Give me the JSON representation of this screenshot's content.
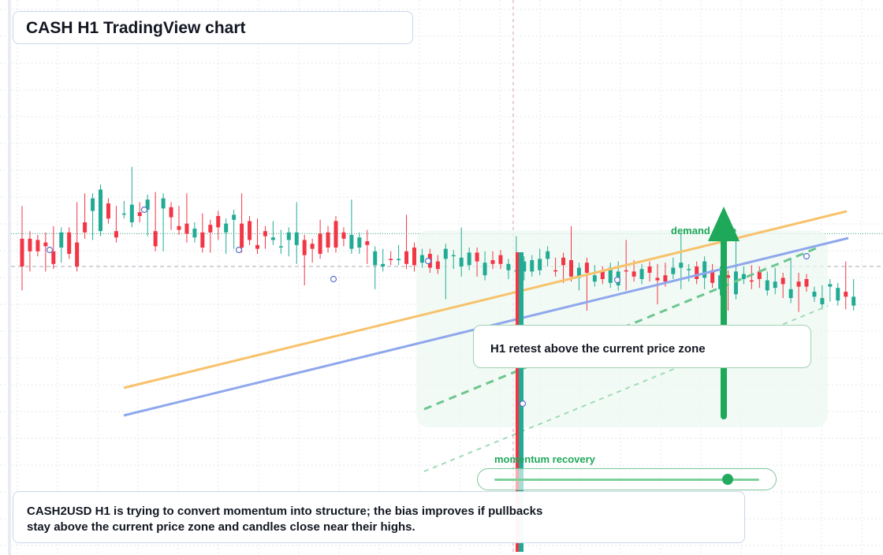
{
  "title": "CASH H1 TradingView chart",
  "callout": "H1 retest above the current price zone",
  "footer_line1": "CASH2USD H1 is trying to convert momentum into structure; the bias improves if pullbacks",
  "footer_line2": "stay above the current price zone and candles close near their highs.",
  "labels": {
    "demand_zone": "demand zone",
    "momentum": "momentum recovery"
  },
  "slider": {
    "value": 0.88
  },
  "colors": {
    "bull": "#22ab94",
    "bear": "#f23645",
    "trend_orange": "#f7c26b",
    "trend_blue": "#8fa8ec",
    "accent_green": "#1ea85a",
    "grid": "#e3e7ee"
  },
  "chart_data": {
    "type": "candlestick",
    "timeframe": "H1",
    "symbol": "CASH2USD",
    "price_levels": {
      "current_price_zone": 1.0,
      "dotted_resistance": 1.026
    },
    "candles": [
      [
        1.022,
        1.024,
        1.021,
        1.0
      ],
      [
        1.022,
        1.024,
        1.0,
        1.012
      ],
      [
        1.021,
        1.02,
        1.014,
        1.012
      ],
      [
        1.019,
        1.023,
        1.0,
        1.016
      ],
      [
        1.012,
        1.028,
        1.005,
        1.002
      ],
      [
        1.015,
        1.027,
        1.007,
        1.027
      ],
      [
        1.027,
        1.018,
        1.027,
        1.01
      ],
      [
        1.019,
        1.027,
        1.024,
        1.0
      ],
      [
        1.035,
        1.026,
        1.054,
        1.027
      ],
      [
        1.044,
        1.049,
        1.04,
        1.054
      ],
      [
        1.028,
        1.049,
        1.031,
        1.061
      ],
      [
        1.05,
        1.046,
        1.039,
        1.038
      ],
      [
        1.028,
        1.038,
        1.044,
        1.023
      ],
      [
        1.042,
        1.048,
        1.042,
        1.042
      ],
      [
        1.035,
        1.055,
        1.037,
        1.049
      ],
      [
        1.043,
        1.039,
        1.047,
        1.04
      ],
      [
        1.045,
        1.042,
        1.028,
        1.053
      ],
      [
        1.028,
        1.043,
        1.055,
        1.016
      ],
      [
        1.046,
        1.037,
        1.031,
        1.054
      ],
      [
        1.047,
        1.033,
        1.043,
        1.039
      ],
      [
        1.032,
        1.04,
        1.044,
        1.029
      ],
      [
        1.034,
        1.026,
        1.023,
        1.026
      ],
      [
        1.023,
        1.024,
        1.031,
        1.03
      ],
      [
        1.027,
        1.033,
        1.038,
        1.015
      ],
      [
        1.033,
        1.024,
        1.015,
        1.027
      ],
      [
        1.04,
        1.025,
        1.025,
        1.031
      ],
      [
        1.027,
        1.024,
        1.014,
        1.034
      ],
      [
        1.037,
        1.034,
        1.033,
        1.041
      ],
      [
        1.034,
        1.032,
        1.024,
        1.015
      ],
      [
        1.036,
        1.025,
        1.03,
        1.021
      ],
      [
        1.017,
        1.034,
        1.022,
        1.014
      ],
      [
        1.028,
        1.022,
        1.018,
        1.024
      ],
      [
        1.021,
        1.032,
        1.024,
        1.023
      ],
      [
        1.016,
        1.014,
        1.025,
        1.016
      ],
      [
        1.021,
        1.023,
        1.012,
        1.027
      ],
      [
        1.017,
        1.006,
        1.015,
        1.027
      ],
      [
        1.021,
        1.004,
        1.012,
        1.009
      ],
      [
        1.018,
        1.007,
        1.018,
        1.014
      ],
      [
        1.026,
        1.031,
        1.033,
        1.01
      ],
      [
        1.027,
        1.027,
        1.028,
        1.015
      ],
      [
        1.036,
        1.028,
        1.031,
        1.015
      ],
      [
        1.027,
        1.02,
        1.023,
        1.022
      ],
      [
        1.014,
        1.028,
        1.029,
        1.025
      ],
      [
        1.015,
        1.014,
        1.019,
        1.023
      ],
      [
        1.02,
        1.006,
        1.025,
        1.017
      ],
      [
        1.001,
        1.01,
        1.003,
        1.012
      ],
      [
        1.0,
        1.01,
        1.006,
        1.002
      ],
      [
        1.006,
        1.006,
        1.008,
        1.005
      ],
      [
        1.005,
        1.013,
        1.01,
        1.006
      ],
      [
        1.012,
        1.017,
        1.003,
        1.002
      ],
      [
        1.015,
        1.003,
        1.0,
        1.001
      ],
      [
        1.003,
        1.01,
        1.008,
        1.009
      ],
      [
        1.01,
        1.008,
        1.004,
        0.999
      ],
      [
        1.004,
        1.005,
        1.001,
        0.998
      ],
      [
        1.006,
        0.995,
        0.993,
        1.014
      ],
      [
        1.009,
        1.006,
        1.002,
        1.009
      ],
      [
        1.0,
        1.003,
        0.996,
        1.007
      ],
      [
        1.001,
        1.011,
        1.002,
        1.011
      ],
      [
        1.011,
        0.996,
        0.999,
        1.004
      ],
      [
        0.993,
        1.004,
        1.008,
        1.003
      ],
      [
        1.005,
        1.003,
        1.008,
        1.002
      ],
      [
        1.009,
        1.009,
        1.006,
        1.002
      ],
      [
        0.997,
        0.994,
        1.001,
        1.002
      ],
      [
        0.997,
        0.995,
        1.0,
        0.997
      ],
      [
        0.996,
        0.993,
        0.994,
        1.004
      ],
      [
        0.996,
        1.002,
        1.0,
        1.005
      ],
      [
        0.997,
        1.01,
        1.005,
        1.006
      ],
      [
        1.006,
        1.006,
        1.004,
        1.012
      ],
      [
        0.997,
        1.003,
        1.0,
        0.996
      ],
      [
        1.007,
        0.995,
        0.991,
        1.001
      ],
      [
        1.005,
        0.992,
        1.008,
        0.992
      ],
      [
        0.991,
        0.993,
        0.985,
        0.999
      ],
      [
        1.003,
        0.992,
        0.984,
        0.995
      ],
      [
        0.988,
        0.992,
        0.997,
        0.993
      ],
      [
        0.996,
        0.99,
        0.993,
        0.99
      ],
      [
        0.987,
        0.996,
        0.993,
        0.999
      ],
      [
        0.985,
        0.989,
        1.0,
        0.996
      ],
      [
        0.997,
        0.985,
        0.992,
        0.996
      ],
      [
        0.996,
        0.997,
        1.001,
        0.992
      ],
      [
        0.99,
        0.998,
        0.995,
        0.998
      ],
      [
        1.0,
        0.992,
        0.999,
        0.995
      ],
      [
        0.991,
        0.998,
        0.993,
        0.989
      ],
      [
        0.993,
        0.999,
        0.994,
        0.988
      ],
      [
        0.994,
        1.003,
        0.999,
        0.999
      ],
      [
        0.999,
        0.997,
        0.986,
        1.003
      ],
      [
        0.998,
        0.996,
        0.992,
        0.998
      ],
      [
        1.0,
        0.996,
        0.993,
        0.99
      ],
      [
        0.991,
        0.994,
        0.986,
        1.004
      ],
      [
        0.997,
        0.993,
        0.998,
        0.987
      ],
      [
        0.982,
        0.996,
        0.981,
        0.993
      ],
      [
        0.993,
        0.984,
        0.993,
        0.991
      ],
      [
        0.978,
        0.985,
        0.988,
        0.996
      ],
      [
        0.99,
        0.996,
        0.995,
        0.994
      ],
      [
        0.989,
        0.986,
        0.997,
        0.988
      ],
      [
        0.996,
        0.994,
        0.987,
        0.99
      ],
      [
        0.981,
        0.992,
        0.984,
        0.989
      ],
      [
        0.983,
        0.982,
        0.995,
        0.988
      ],
      [
        0.991,
        0.981,
        0.979,
        0.986
      ],
      [
        0.975,
        0.981,
        0.983,
        0.982
      ],
      [
        0.988,
        0.991,
        0.983,
        0.984
      ],
      [
        0.99,
        0.986,
        0.988,
        0.984
      ],
      [
        0.976,
        0.978,
        0.98,
        0.98
      ],
      [
        0.97,
        0.978,
        0.981,
        0.975
      ],
      [
        0.984,
        0.976,
        0.981,
        0.986
      ],
      [
        0.973,
        0.976,
        0.978,
        0.983
      ],
      [
        0.98,
        0.971,
        0.97,
        0.976
      ],
      [
        0.969,
        0.986,
        0.977,
        0.976
      ]
    ]
  }
}
